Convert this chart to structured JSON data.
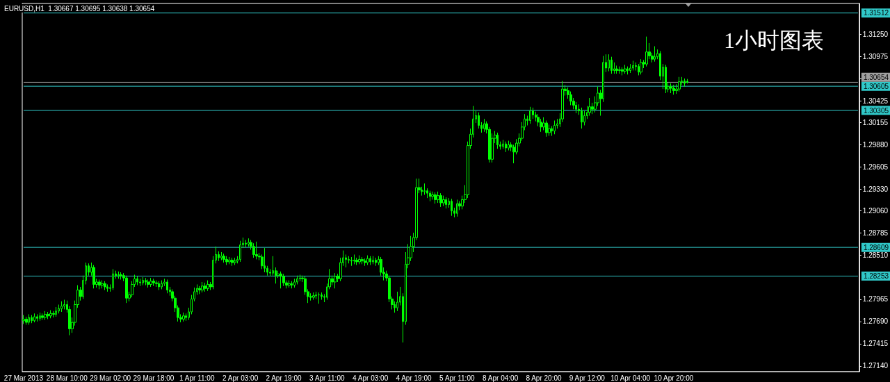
{
  "chart_data": {
    "type": "candlestick",
    "title": "EURUSD,H1  1.30667 1.30695 1.30638 1.30654",
    "annotations": [
      "1小时图表"
    ],
    "categories": [
      "27 Mar 2013",
      null,
      null,
      null,
      null,
      null,
      null,
      null,
      null,
      null,
      null,
      null,
      null,
      null,
      null,
      null,
      "28 Mar 10:00",
      null,
      null,
      null,
      null,
      null,
      null,
      null,
      null,
      null,
      null,
      null,
      null,
      null,
      null,
      null,
      "29 Mar 02:00",
      null,
      null,
      null,
      null,
      null,
      null,
      null,
      null,
      null,
      null,
      null,
      null,
      null,
      null,
      null,
      "29 Mar 18:00",
      null,
      null,
      null,
      null,
      null,
      null,
      null,
      null,
      null,
      null,
      null,
      null,
      null,
      null,
      null,
      "1 Apr 11:00",
      null,
      null,
      null,
      null,
      null,
      null,
      null,
      null,
      null,
      null,
      null,
      null,
      null,
      null,
      null,
      "2 Apr 03:00",
      null,
      null,
      null,
      null,
      null,
      null,
      null,
      null,
      null,
      null,
      null,
      null,
      null,
      null,
      null,
      "2 Apr 19:00",
      null,
      null,
      null,
      null,
      null,
      null,
      null,
      null,
      null,
      null,
      null,
      null,
      null,
      null,
      null,
      "3 Apr 11:00",
      null,
      null,
      null,
      null,
      null,
      null,
      null,
      null,
      null,
      null,
      null,
      null,
      null,
      null,
      null,
      "4 Apr 03:00",
      null,
      null,
      null,
      null,
      null,
      null,
      null,
      null,
      null,
      null,
      null,
      null,
      null,
      null,
      null,
      "4 Apr 19:00",
      null,
      null,
      null,
      null,
      null,
      null,
      null,
      null,
      null,
      null,
      null,
      null,
      null,
      null,
      null,
      "5 Apr 11:00",
      null,
      null,
      null,
      null,
      null,
      null,
      null,
      null,
      null,
      null,
      null,
      null,
      null,
      null,
      null,
      "8 Apr 04:00",
      null,
      null,
      null,
      null,
      null,
      null,
      null,
      null,
      null,
      null,
      null,
      null,
      null,
      null,
      null,
      "8 Apr 20:00",
      null,
      null,
      null,
      null,
      null,
      null,
      null,
      null,
      null,
      null,
      null,
      null,
      null,
      null,
      null,
      "9 Apr 12:00",
      null,
      null,
      null,
      null,
      null,
      null,
      null,
      null,
      null,
      null,
      null,
      null,
      null,
      null,
      null,
      "10 Apr 04:00",
      null,
      null,
      null,
      null,
      null,
      null,
      null,
      null,
      null,
      null,
      null,
      null,
      null,
      null,
      null,
      "10 Apr 20:00",
      null,
      null,
      null,
      null,
      null,
      null,
      null,
      null,
      null,
      null,
      null,
      null,
      null,
      null,
      null,
      null,
      null,
      null,
      null,
      null,
      null,
      null,
      null,
      null,
      null,
      null,
      null,
      null,
      null,
      null,
      null,
      null,
      null,
      null,
      null,
      null,
      null,
      null,
      null,
      null,
      null,
      null,
      null,
      null,
      null,
      null,
      null,
      null,
      null,
      null,
      null,
      null,
      null,
      null,
      null,
      null,
      null,
      null,
      null,
      null,
      null,
      null,
      null,
      null,
      null,
      null,
      null,
      null
    ],
    "ohlc": [
      [
        1.277,
        1.2777,
        1.2766,
        1.2772
      ],
      [
        1.2772,
        1.2775,
        1.2765,
        1.2768
      ],
      [
        1.2768,
        1.2778,
        1.2765,
        1.2774
      ],
      [
        1.2774,
        1.2777,
        1.2767,
        1.277
      ],
      [
        1.277,
        1.2779,
        1.2768,
        1.2775
      ],
      [
        1.2775,
        1.2778,
        1.2769,
        1.2773
      ],
      [
        1.2773,
        1.278,
        1.277,
        1.2776
      ],
      [
        1.2776,
        1.2779,
        1.2771,
        1.2774
      ],
      [
        1.2774,
        1.2782,
        1.2771,
        1.2778
      ],
      [
        1.2778,
        1.2781,
        1.2772,
        1.2776
      ],
      [
        1.2776,
        1.2783,
        1.2773,
        1.2779
      ],
      [
        1.2779,
        1.2782,
        1.2774,
        1.2778
      ],
      [
        1.2778,
        1.2787,
        1.2775,
        1.2782
      ],
      [
        1.2782,
        1.279,
        1.2779,
        1.2785
      ],
      [
        1.2785,
        1.2794,
        1.2781,
        1.2788
      ],
      [
        1.2788,
        1.2796,
        1.2784,
        1.279
      ],
      [
        1.279,
        1.2795,
        1.278,
        1.2784
      ],
      [
        1.2784,
        1.2788,
        1.2752,
        1.276
      ],
      [
        1.276,
        1.2774,
        1.2755,
        1.2768
      ],
      [
        1.2768,
        1.2795,
        1.2764,
        1.279
      ],
      [
        1.279,
        1.2814,
        1.2786,
        1.2808
      ],
      [
        1.2808,
        1.2812,
        1.2795,
        1.28
      ],
      [
        1.28,
        1.2826,
        1.2797,
        1.282
      ],
      [
        1.282,
        1.2842,
        1.2815,
        1.2838
      ],
      [
        1.2838,
        1.2841,
        1.2826,
        1.283
      ],
      [
        1.283,
        1.2842,
        1.2826,
        1.2836
      ],
      [
        1.2836,
        1.2839,
        1.281,
        1.2815
      ],
      [
        1.2815,
        1.2822,
        1.2811,
        1.2818
      ],
      [
        1.2818,
        1.2821,
        1.2809,
        1.2814
      ],
      [
        1.2814,
        1.282,
        1.281,
        1.2816
      ],
      [
        1.2816,
        1.2819,
        1.2808,
        1.2812
      ],
      [
        1.2812,
        1.2815,
        1.2806,
        1.281
      ],
      [
        1.281,
        1.2815,
        1.2806,
        1.2811
      ],
      [
        1.2811,
        1.2834,
        1.2808,
        1.2828
      ],
      [
        1.2828,
        1.2832,
        1.2822,
        1.2826
      ],
      [
        1.2826,
        1.2831,
        1.2822,
        1.2827
      ],
      [
        1.2827,
        1.283,
        1.2821,
        1.2826
      ],
      [
        1.2826,
        1.2829,
        1.2819,
        1.2823
      ],
      [
        1.2823,
        1.2826,
        1.2792,
        1.2798
      ],
      [
        1.2798,
        1.2806,
        1.2794,
        1.2802
      ],
      [
        1.2802,
        1.2819,
        1.2799,
        1.2815
      ],
      [
        1.2815,
        1.2827,
        1.2812,
        1.2822
      ],
      [
        1.2822,
        1.2825,
        1.2814,
        1.2818
      ],
      [
        1.2818,
        1.2822,
        1.2813,
        1.2817
      ],
      [
        1.2817,
        1.2824,
        1.2814,
        1.282
      ],
      [
        1.282,
        1.2823,
        1.2814,
        1.2818
      ],
      [
        1.2818,
        1.2821,
        1.2811,
        1.2815
      ],
      [
        1.2815,
        1.2823,
        1.2812,
        1.2819
      ],
      [
        1.2819,
        1.2822,
        1.2813,
        1.2817
      ],
      [
        1.2817,
        1.282,
        1.2812,
        1.2816
      ],
      [
        1.2816,
        1.2819,
        1.2808,
        1.2812
      ],
      [
        1.2812,
        1.282,
        1.2809,
        1.2816
      ],
      [
        1.2816,
        1.2822,
        1.2813,
        1.2818
      ],
      [
        1.2818,
        1.2821,
        1.2804,
        1.2808
      ],
      [
        1.2808,
        1.2812,
        1.2801,
        1.2806
      ],
      [
        1.2806,
        1.2809,
        1.2794,
        1.2798
      ],
      [
        1.2798,
        1.2801,
        1.2781,
        1.2786
      ],
      [
        1.2786,
        1.2789,
        1.2769,
        1.2774
      ],
      [
        1.2774,
        1.2778,
        1.2768,
        1.2772
      ],
      [
        1.2772,
        1.278,
        1.2769,
        1.2776
      ],
      [
        1.2776,
        1.2779,
        1.277,
        1.2774
      ],
      [
        1.2774,
        1.2786,
        1.2771,
        1.2781
      ],
      [
        1.2781,
        1.2802,
        1.2778,
        1.2797
      ],
      [
        1.2797,
        1.2811,
        1.2794,
        1.2806
      ],
      [
        1.2806,
        1.2815,
        1.2802,
        1.281
      ],
      [
        1.281,
        1.2813,
        1.2803,
        1.2808
      ],
      [
        1.2808,
        1.2818,
        1.2805,
        1.2813
      ],
      [
        1.2813,
        1.2817,
        1.2806,
        1.281
      ],
      [
        1.281,
        1.282,
        1.2807,
        1.2815
      ],
      [
        1.2815,
        1.2818,
        1.2808,
        1.2812
      ],
      [
        1.2812,
        1.285,
        1.2809,
        1.2845
      ],
      [
        1.2845,
        1.2862,
        1.2841,
        1.2852
      ],
      [
        1.2852,
        1.2856,
        1.2844,
        1.2848
      ],
      [
        1.2848,
        1.2855,
        1.2845,
        1.285
      ],
      [
        1.285,
        1.2853,
        1.2842,
        1.2846
      ],
      [
        1.2846,
        1.285,
        1.2839,
        1.2843
      ],
      [
        1.2843,
        1.2849,
        1.284,
        1.2845
      ],
      [
        1.2845,
        1.2848,
        1.2838,
        1.2842
      ],
      [
        1.2842,
        1.2848,
        1.2839,
        1.2844
      ],
      [
        1.2844,
        1.285,
        1.2841,
        1.2846
      ],
      [
        1.2846,
        1.2869,
        1.2843,
        1.2864
      ],
      [
        1.2864,
        1.2873,
        1.286,
        1.2866
      ],
      [
        1.2866,
        1.287,
        1.2861,
        1.2865
      ],
      [
        1.2865,
        1.2872,
        1.2862,
        1.2867
      ],
      [
        1.2867,
        1.287,
        1.2858,
        1.2862
      ],
      [
        1.2862,
        1.2866,
        1.2848,
        1.2852
      ],
      [
        1.2852,
        1.2868,
        1.2846,
        1.285
      ],
      [
        1.285,
        1.2854,
        1.2845,
        1.2849
      ],
      [
        1.2849,
        1.2852,
        1.2834,
        1.2838
      ],
      [
        1.2838,
        1.286,
        1.283,
        1.2835
      ],
      [
        1.2835,
        1.2838,
        1.2826,
        1.283
      ],
      [
        1.283,
        1.2834,
        1.2825,
        1.2829
      ],
      [
        1.2829,
        1.285,
        1.2826,
        1.2832
      ],
      [
        1.2832,
        1.2836,
        1.2816,
        1.2826
      ],
      [
        1.2826,
        1.2832,
        1.2823,
        1.2828
      ],
      [
        1.2828,
        1.2831,
        1.281,
        1.2825
      ],
      [
        1.2825,
        1.2828,
        1.2813,
        1.2817
      ],
      [
        1.2817,
        1.282,
        1.281,
        1.2814
      ],
      [
        1.2814,
        1.282,
        1.2811,
        1.2816
      ],
      [
        1.2816,
        1.2819,
        1.281,
        1.2814
      ],
      [
        1.2814,
        1.2822,
        1.2811,
        1.2818
      ],
      [
        1.2818,
        1.2826,
        1.2815,
        1.2822
      ],
      [
        1.2822,
        1.2827,
        1.2819,
        1.2823
      ],
      [
        1.2823,
        1.2826,
        1.2818,
        1.2822
      ],
      [
        1.2822,
        1.2825,
        1.2802,
        1.2806
      ],
      [
        1.2806,
        1.2809,
        1.2792,
        1.28
      ],
      [
        1.28,
        1.2804,
        1.2795,
        1.2799
      ],
      [
        1.2799,
        1.2805,
        1.2796,
        1.2801
      ],
      [
        1.2801,
        1.2806,
        1.2797,
        1.2802
      ],
      [
        1.2802,
        1.2805,
        1.2791,
        1.2802
      ],
      [
        1.2802,
        1.2805,
        1.2796,
        1.28
      ],
      [
        1.28,
        1.2803,
        1.2793,
        1.2799
      ],
      [
        1.2799,
        1.2816,
        1.2796,
        1.2812
      ],
      [
        1.2812,
        1.2834,
        1.2809,
        1.2822
      ],
      [
        1.2822,
        1.2826,
        1.2814,
        1.2818
      ],
      [
        1.2818,
        1.2829,
        1.281,
        1.2825
      ],
      [
        1.2825,
        1.2828,
        1.2818,
        1.2822
      ],
      [
        1.2822,
        1.2848,
        1.2819,
        1.2842
      ],
      [
        1.2842,
        1.2857,
        1.2838,
        1.2848
      ],
      [
        1.2848,
        1.2852,
        1.2836,
        1.2846
      ],
      [
        1.2846,
        1.285,
        1.2841,
        1.2845
      ],
      [
        1.2845,
        1.2849,
        1.2838,
        1.2844
      ],
      [
        1.2844,
        1.2852,
        1.284,
        1.2845
      ],
      [
        1.2845,
        1.2848,
        1.2839,
        1.2843
      ],
      [
        1.2843,
        1.2851,
        1.284,
        1.2846
      ],
      [
        1.2846,
        1.2849,
        1.284,
        1.2844
      ],
      [
        1.2844,
        1.2847,
        1.2838,
        1.2842
      ],
      [
        1.2842,
        1.2851,
        1.2839,
        1.2847
      ],
      [
        1.2847,
        1.285,
        1.2839,
        1.2843
      ],
      [
        1.2843,
        1.285,
        1.284,
        1.2845
      ],
      [
        1.2845,
        1.2848,
        1.2838,
        1.2842
      ],
      [
        1.2842,
        1.285,
        1.2839,
        1.2846
      ],
      [
        1.2846,
        1.2849,
        1.2826,
        1.283
      ],
      [
        1.283,
        1.2836,
        1.282,
        1.2828
      ],
      [
        1.2828,
        1.2832,
        1.2819,
        1.2823
      ],
      [
        1.2823,
        1.2826,
        1.2793,
        1.2797
      ],
      [
        1.2797,
        1.28,
        1.2784,
        1.279
      ],
      [
        1.279,
        1.2794,
        1.278,
        1.2786
      ],
      [
        1.2786,
        1.2806,
        1.2782,
        1.2793
      ],
      [
        1.2793,
        1.2812,
        1.2789,
        1.28
      ],
      [
        1.28,
        1.2804,
        1.2743,
        1.2769
      ],
      [
        1.2769,
        1.2855,
        1.2765,
        1.284
      ],
      [
        1.284,
        1.2865,
        1.2835,
        1.2848
      ],
      [
        1.2848,
        1.2875,
        1.2844,
        1.2862
      ],
      [
        1.2862,
        1.2879,
        1.2855,
        1.2873
      ],
      [
        1.2873,
        1.2946,
        1.287,
        1.2935
      ],
      [
        1.2935,
        1.2946,
        1.2928,
        1.2932
      ],
      [
        1.2932,
        1.2936,
        1.2925,
        1.293
      ],
      [
        1.293,
        1.294,
        1.2926,
        1.2931
      ],
      [
        1.2931,
        1.2934,
        1.2922,
        1.2928
      ],
      [
        1.2928,
        1.2931,
        1.2918,
        1.2924
      ],
      [
        1.2924,
        1.293,
        1.292,
        1.2926
      ],
      [
        1.2926,
        1.2929,
        1.2915,
        1.292
      ],
      [
        1.292,
        1.293,
        1.2916,
        1.2925
      ],
      [
        1.2925,
        1.2928,
        1.2911,
        1.2916
      ],
      [
        1.2916,
        1.2925,
        1.2912,
        1.292
      ],
      [
        1.292,
        1.2923,
        1.2909,
        1.2914
      ],
      [
        1.2914,
        1.2922,
        1.291,
        1.2918
      ],
      [
        1.2918,
        1.2921,
        1.29,
        1.2906
      ],
      [
        1.2906,
        1.291,
        1.2898,
        1.2903
      ],
      [
        1.2903,
        1.292,
        1.2899,
        1.2915
      ],
      [
        1.2915,
        1.2918,
        1.2907,
        1.2912
      ],
      [
        1.2912,
        1.2925,
        1.2908,
        1.292
      ],
      [
        1.292,
        1.2938,
        1.2916,
        1.2926
      ],
      [
        1.2926,
        1.2992,
        1.2922,
        1.2987
      ],
      [
        1.2987,
        1.3008,
        1.2983,
        1.3001
      ],
      [
        1.3001,
        1.3036,
        1.2997,
        1.302
      ],
      [
        1.302,
        1.303,
        1.3015,
        1.3024
      ],
      [
        1.3024,
        1.3028,
        1.3008,
        1.3012
      ],
      [
        1.3012,
        1.3016,
        1.3003,
        1.3008
      ],
      [
        1.3008,
        1.302,
        1.3004,
        1.3014
      ],
      [
        1.3014,
        1.3017,
        1.3002,
        1.3007
      ],
      [
        1.3007,
        1.301,
        1.2966,
        1.297
      ],
      [
        1.297,
        1.3002,
        1.2966,
        1.2996
      ],
      [
        1.2996,
        1.3005,
        1.299,
        1.3
      ],
      [
        1.3,
        1.3003,
        1.2983,
        1.2988
      ],
      [
        1.2988,
        1.2992,
        1.2982,
        1.2986
      ],
      [
        1.2986,
        1.2994,
        1.2983,
        1.2989
      ],
      [
        1.2989,
        1.2992,
        1.2979,
        1.2984
      ],
      [
        1.2984,
        1.2993,
        1.2981,
        1.2988
      ],
      [
        1.2988,
        1.2991,
        1.298,
        1.2985
      ],
      [
        1.2985,
        1.2988,
        1.2965,
        1.2979
      ],
      [
        1.2979,
        1.2995,
        1.2976,
        1.299
      ],
      [
        1.299,
        1.3002,
        1.2986,
        1.2996
      ],
      [
        1.2996,
        1.3016,
        1.2993,
        1.301
      ],
      [
        1.301,
        1.3026,
        1.3006,
        1.302
      ],
      [
        1.302,
        1.3024,
        1.3012,
        1.3018
      ],
      [
        1.3018,
        1.3035,
        1.3014,
        1.303
      ],
      [
        1.303,
        1.3034,
        1.302,
        1.3025
      ],
      [
        1.3025,
        1.3029,
        1.3017,
        1.3022
      ],
      [
        1.3022,
        1.3026,
        1.3011,
        1.3016
      ],
      [
        1.3016,
        1.302,
        1.3004,
        1.301
      ],
      [
        1.301,
        1.3022,
        1.3006,
        1.3015
      ],
      [
        1.3015,
        1.3018,
        1.2998,
        1.3003
      ],
      [
        1.3003,
        1.3013,
        1.2999,
        1.3008
      ],
      [
        1.3008,
        1.3011,
        1.2999,
        1.3005
      ],
      [
        1.3005,
        1.3018,
        1.3001,
        1.3012
      ],
      [
        1.3012,
        1.302,
        1.3008,
        1.3014
      ],
      [
        1.3014,
        1.3027,
        1.301,
        1.302
      ],
      [
        1.302,
        1.3067,
        1.3016,
        1.3057
      ],
      [
        1.3057,
        1.3062,
        1.3049,
        1.3055
      ],
      [
        1.3055,
        1.3059,
        1.3045,
        1.305
      ],
      [
        1.305,
        1.3054,
        1.3037,
        1.3042
      ],
      [
        1.3042,
        1.3046,
        1.3032,
        1.3037
      ],
      [
        1.3037,
        1.3041,
        1.3027,
        1.3032
      ],
      [
        1.3032,
        1.3038,
        1.3025,
        1.303
      ],
      [
        1.303,
        1.3034,
        1.3008,
        1.3016
      ],
      [
        1.3016,
        1.303,
        1.3012,
        1.3024
      ],
      [
        1.3024,
        1.3036,
        1.302,
        1.3028
      ],
      [
        1.3028,
        1.3046,
        1.3024,
        1.3035
      ],
      [
        1.3035,
        1.304,
        1.3026,
        1.3032
      ],
      [
        1.3032,
        1.3048,
        1.3028,
        1.304
      ],
      [
        1.304,
        1.306,
        1.3036,
        1.3052
      ],
      [
        1.3052,
        1.3056,
        1.3024,
        1.3045
      ],
      [
        1.3045,
        1.3098,
        1.3041,
        1.309
      ],
      [
        1.309,
        1.31,
        1.3078,
        1.3083
      ],
      [
        1.3083,
        1.31,
        1.3079,
        1.3093
      ],
      [
        1.3093,
        1.3097,
        1.3076,
        1.308
      ],
      [
        1.308,
        1.309,
        1.3076,
        1.3082
      ],
      [
        1.3082,
        1.3086,
        1.3076,
        1.308
      ],
      [
        1.308,
        1.3085,
        1.3076,
        1.3081
      ],
      [
        1.3081,
        1.3084,
        1.3074,
        1.3079
      ],
      [
        1.3079,
        1.3087,
        1.3076,
        1.3082
      ],
      [
        1.3082,
        1.3085,
        1.3075,
        1.308
      ],
      [
        1.308,
        1.3088,
        1.3077,
        1.3083
      ],
      [
        1.3083,
        1.3092,
        1.308,
        1.3086
      ],
      [
        1.3086,
        1.309,
        1.308,
        1.3085
      ],
      [
        1.3085,
        1.3088,
        1.3074,
        1.3078
      ],
      [
        1.3078,
        1.3094,
        1.3075,
        1.309
      ],
      [
        1.309,
        1.3093,
        1.3083,
        1.3088
      ],
      [
        1.3088,
        1.3122,
        1.3085,
        1.3103
      ],
      [
        1.3103,
        1.3114,
        1.3094,
        1.3098
      ],
      [
        1.3098,
        1.3102,
        1.309,
        1.3094
      ],
      [
        1.3094,
        1.311,
        1.3091,
        1.3097
      ],
      [
        1.3097,
        1.3106,
        1.3094,
        1.3101
      ],
      [
        1.3101,
        1.3104,
        1.3068,
        1.3073
      ],
      [
        1.3073,
        1.3088,
        1.3057,
        1.3084
      ],
      [
        1.3084,
        1.3087,
        1.3052,
        1.3057
      ],
      [
        1.3057,
        1.3065,
        1.3053,
        1.306
      ],
      [
        1.306,
        1.3064,
        1.3052,
        1.3058
      ],
      [
        1.3058,
        1.3062,
        1.305,
        1.3055
      ],
      [
        1.3055,
        1.3063,
        1.3051,
        1.3057
      ],
      [
        1.3057,
        1.3072,
        1.3054,
        1.3066
      ],
      [
        1.3066,
        1.3072,
        1.3062,
        1.3067
      ],
      [
        1.3067,
        1.307,
        1.306,
        1.3064
      ],
      [
        1.30667,
        1.30695,
        1.30638,
        1.30654
      ],
      null,
      null,
      null,
      null,
      null,
      null,
      null,
      null,
      null,
      null,
      null,
      null,
      null,
      null,
      null,
      null,
      null,
      null,
      null,
      null,
      null,
      null,
      null,
      null,
      null,
      null,
      null,
      null,
      null,
      null,
      null,
      null,
      null,
      null,
      null,
      null,
      null,
      null,
      null,
      null,
      null,
      null,
      null,
      null,
      null,
      null,
      null,
      null,
      null,
      null,
      null,
      null,
      null,
      null,
      null,
      null,
      null,
      null,
      null,
      null,
      null,
      null,
      null
    ],
    "color": "#00ff00",
    "ylim": [
      1.2707,
      1.3163
    ],
    "yticks": [
      {
        "value": 1.2714,
        "label": "1.27140"
      },
      {
        "value": 1.27415,
        "label": "1.27415"
      },
      {
        "value": 1.2769,
        "label": "1.27690"
      },
      {
        "value": 1.27965,
        "label": "1.27965"
      },
      {
        "value": 1.2851,
        "label": "1.28510"
      },
      {
        "value": 1.28785,
        "label": "1.28785"
      },
      {
        "value": 1.2906,
        "label": "1.29060"
      },
      {
        "value": 1.2933,
        "label": "1.29330"
      },
      {
        "value": 1.29605,
        "label": "1.29605"
      },
      {
        "value": 1.2988,
        "label": "1.29880"
      },
      {
        "value": 1.30155,
        "label": "1.30155"
      },
      {
        "value": 1.30425,
        "label": "1.30425"
      },
      {
        "value": 1.307,
        "label": null
      },
      {
        "value": 1.30975,
        "label": "1.30975"
      },
      {
        "value": 1.3125,
        "label": "1.31250"
      }
    ],
    "ref_lines": [
      {
        "axis": "y",
        "value": 1.31512,
        "label": "1.31512",
        "color": "#30c8c8"
      },
      {
        "axis": "y",
        "value": 1.30654,
        "label": "1.30654",
        "color": "#a0a0a0"
      },
      {
        "axis": "y",
        "value": 1.30605,
        "label": "1.30605",
        "color": "#30c8c8"
      },
      {
        "axis": "y",
        "value": 1.30305,
        "label": "1.30305",
        "color": "#30c8c8"
      },
      {
        "axis": "y",
        "value": 1.28609,
        "label": "1.28609",
        "color": "#30c8c8"
      },
      {
        "axis": "y",
        "value": 1.28253,
        "label": "1.28253",
        "color": "#30c8c8"
      }
    ],
    "grid": false
  }
}
